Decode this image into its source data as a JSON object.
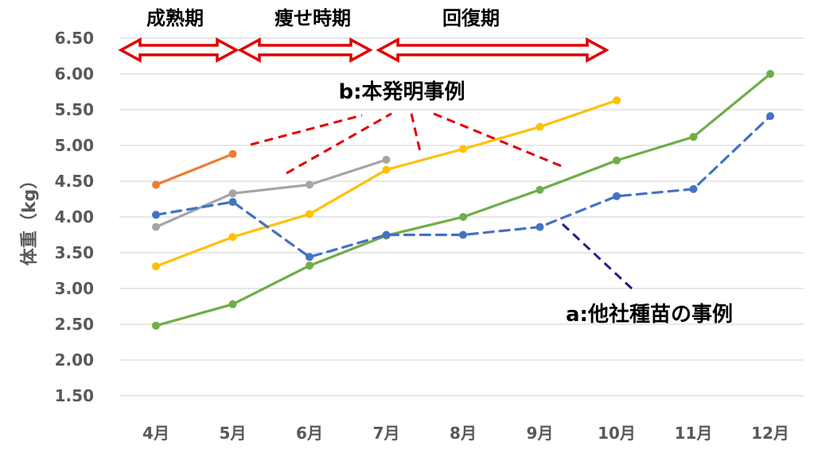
{
  "chart_data": {
    "type": "line",
    "ylabel": "体重（kg）",
    "ylim": [
      1.5,
      6.5
    ],
    "yticks": [
      "1.50",
      "2.00",
      "2.50",
      "3.00",
      "3.50",
      "4.00",
      "4.50",
      "5.00",
      "5.50",
      "6.00",
      "6.50"
    ],
    "categories": [
      "4月",
      "5月",
      "6月",
      "7月",
      "8月",
      "9月",
      "10月",
      "11月",
      "12月"
    ],
    "grid": true,
    "series": [
      {
        "values": [
          4.45,
          4.88,
          null,
          null,
          null,
          null,
          null,
          null,
          null
        ],
        "color": "#ED7D31",
        "dashed": false
      },
      {
        "values": [
          3.86,
          4.33,
          4.45,
          4.8,
          null,
          null,
          null,
          null,
          null
        ],
        "color": "#A5A5A5",
        "dashed": false
      },
      {
        "values": [
          3.31,
          3.72,
          4.04,
          4.66,
          4.95,
          5.26,
          5.63,
          null,
          null
        ],
        "color": "#FFC000",
        "dashed": false
      },
      {
        "values": [
          2.48,
          2.78,
          3.32,
          3.74,
          4.0,
          4.38,
          4.79,
          5.12,
          6.0
        ],
        "color": "#70AD47",
        "dashed": false
      },
      {
        "values": [
          4.03,
          4.21,
          3.44,
          3.75,
          3.75,
          3.86,
          4.29,
          4.39,
          5.41
        ],
        "color": "#4472C4",
        "dashed": true
      }
    ],
    "phases": [
      "成熟期",
      "痩せ時期",
      "回復期"
    ],
    "annotations": {
      "b": "b:本発明事例",
      "a": "a:他社種苗の事例"
    },
    "colors": {
      "arrow": "#E00000",
      "pointer_b": "#E00000",
      "pointer_a": "#1F1F8F",
      "grid": "#D9D9D9"
    }
  }
}
